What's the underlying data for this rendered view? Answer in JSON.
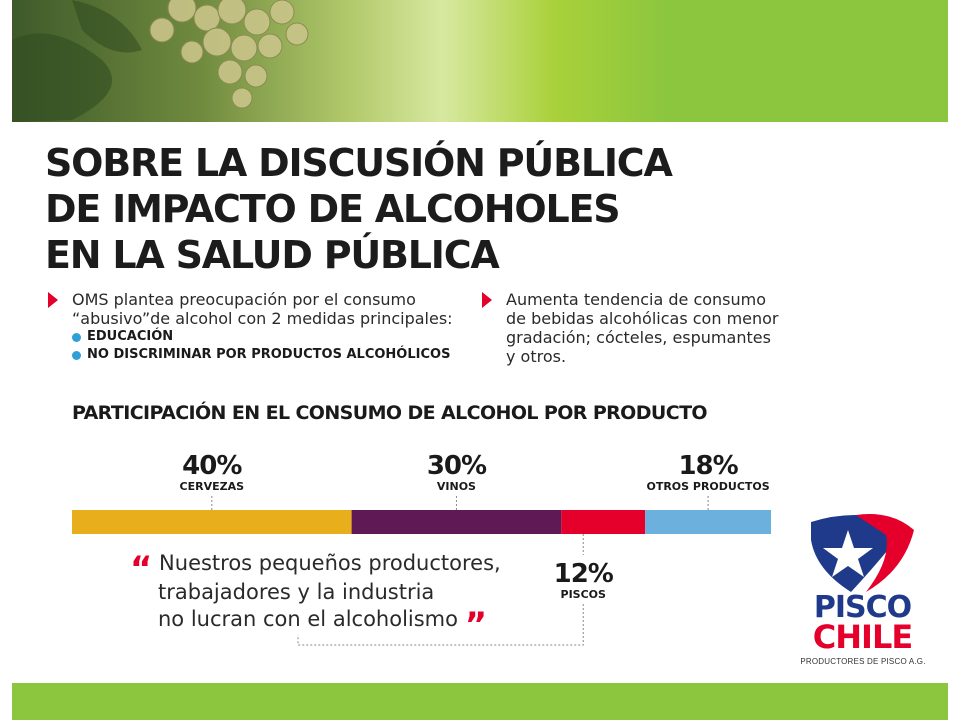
{
  "title": {
    "line1": "SOBRE LA DISCUSIÓN PÚBLICA",
    "line2": "DE IMPACTO DE ALCOHOLES",
    "line3": "EN LA SALUD PÚBLICA"
  },
  "left_column": {
    "line1": "OMS plantea preocupación por el consumo",
    "line2": "“abusivo”de alcohol con 2 medidas principales:",
    "bullets": [
      "EDUCACIÓN",
      "NO DISCRIMINAR POR PRODUCTOS ALCOHÓLICOS"
    ]
  },
  "right_column": {
    "line1": "Aumenta tendencia de consumo",
    "line2": "de bebidas alcohólicas con menor",
    "line3": "gradación; cócteles, espumantes",
    "line4": "y otros."
  },
  "quote": {
    "line1": "Nuestros pequeños productores,",
    "line2": "trabajadores y la industria",
    "line3": "no lucran con el alcoholismo",
    "open_mark": "“",
    "close_mark": "”"
  },
  "logo": {
    "line1": "PISCO",
    "line2": "CHILE",
    "subtitle": "PRODUCTORES DE PISCO A.G.",
    "colors": {
      "blue": "#1f3a8a",
      "red": "#e4002b"
    }
  },
  "chart_data": {
    "type": "bar",
    "title": "PARTICIPACIÓN EN EL CONSUMO DE ALCOHOL POR PRODUCTO",
    "categories": [
      "CERVEZAS",
      "VINOS",
      "PISCOS",
      "OTROS PRODUCTOS"
    ],
    "values": [
      40,
      30,
      12,
      18
    ],
    "value_labels": [
      "40%",
      "30%",
      "12%",
      "18%"
    ],
    "colors": [
      "#e8ae1c",
      "#5f1a56",
      "#e4002b",
      "#6cb0dd"
    ],
    "stacked_single_bar": true
  }
}
